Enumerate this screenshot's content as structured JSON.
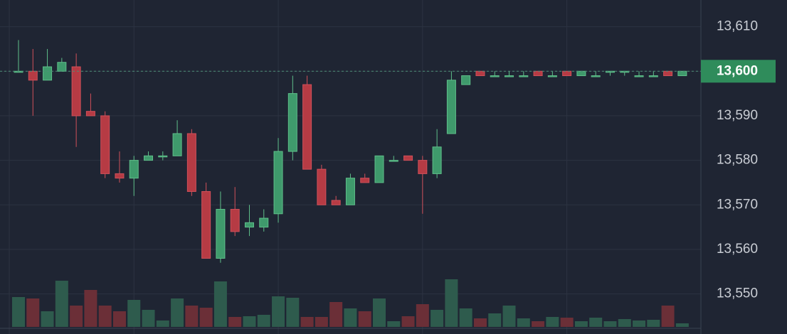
{
  "chart_data": {
    "type": "candlestick",
    "open": [
      13600,
      13600,
      13598,
      13600,
      13601,
      13591,
      13590,
      13577,
      13576,
      13580,
      13581,
      13581,
      13586,
      13573,
      13558,
      13569,
      13565,
      13565,
      13568,
      13582,
      13597,
      13578,
      13571,
      13570,
      13576,
      13575,
      13580,
      13581,
      13580,
      13577,
      13586,
      13597,
      13600,
      13599,
      13599,
      13599,
      13600,
      13599,
      13600,
      13599,
      13599,
      13600,
      13600,
      13599,
      13599,
      13600,
      13599
    ],
    "high": [
      13607,
      13605,
      13605,
      13603,
      13604,
      13595,
      13591,
      13582,
      13581,
      13582,
      13582,
      13589,
      13587,
      13575,
      13573,
      13574,
      13570,
      13569,
      13585,
      13599,
      13599,
      13579,
      13572,
      13577,
      13577,
      13581,
      13581,
      13581,
      13581,
      13587,
      13600,
      13599,
      13600,
      13600,
      13600,
      13600,
      13600,
      13600,
      13600,
      13600,
      13600,
      13600,
      13600,
      13600,
      13600,
      13600,
      13600
    ],
    "low": [
      13600,
      13590,
      13598,
      13600,
      13583,
      13590,
      13576,
      13575,
      13572,
      13580,
      13580,
      13581,
      13572,
      13558,
      13557,
      13563,
      13563,
      13564,
      13566,
      13580,
      13578,
      13570,
      13570,
      13570,
      13575,
      13575,
      13580,
      13580,
      13568,
      13576,
      13586,
      13597,
      13599,
      13599,
      13599,
      13599,
      13599,
      13599,
      13599,
      13599,
      13599,
      13599,
      13599,
      13599,
      13599,
      13599,
      13599
    ],
    "close": [
      13600,
      13598,
      13601,
      13602,
      13590,
      13590,
      13577,
      13576,
      13580,
      13581,
      13581,
      13586,
      13573,
      13558,
      13569,
      13564,
      13566,
      13567,
      13582,
      13595,
      13578,
      13570,
      13570,
      13576,
      13575,
      13581,
      13580,
      13580,
      13577,
      13583,
      13598,
      13599,
      13599,
      13599,
      13599,
      13599,
      13599,
      13599,
      13599,
      13600,
      13599,
      13600,
      13600,
      13599,
      13599,
      13599,
      13600
    ],
    "volume": [
      42,
      40,
      22,
      65,
      30,
      52,
      30,
      22,
      38,
      24,
      9,
      40,
      30,
      27,
      64,
      14,
      15,
      17,
      43,
      41,
      14,
      14,
      35,
      26,
      22,
      40,
      8,
      15,
      32,
      24,
      67,
      26,
      12,
      19,
      30,
      12,
      8,
      14,
      13,
      8,
      13,
      8,
      11,
      9,
      10,
      30,
      5
    ],
    "up_color": "#3f9a6c",
    "down_color": "#b63b44",
    "ylim": [
      13541,
      13616
    ],
    "yticks": [
      {
        "value": 13550,
        "label": "13,550"
      },
      {
        "value": 13560,
        "label": "13,560"
      },
      {
        "value": 13570,
        "label": "13,570"
      },
      {
        "value": 13580,
        "label": "13,580"
      },
      {
        "value": 13590,
        "label": "13,590"
      },
      {
        "value": 13600,
        "label": "13,600"
      },
      {
        "value": 13610,
        "label": "13,610"
      }
    ],
    "last_price": {
      "value": 13600,
      "label": "13,600"
    },
    "grid": true
  }
}
